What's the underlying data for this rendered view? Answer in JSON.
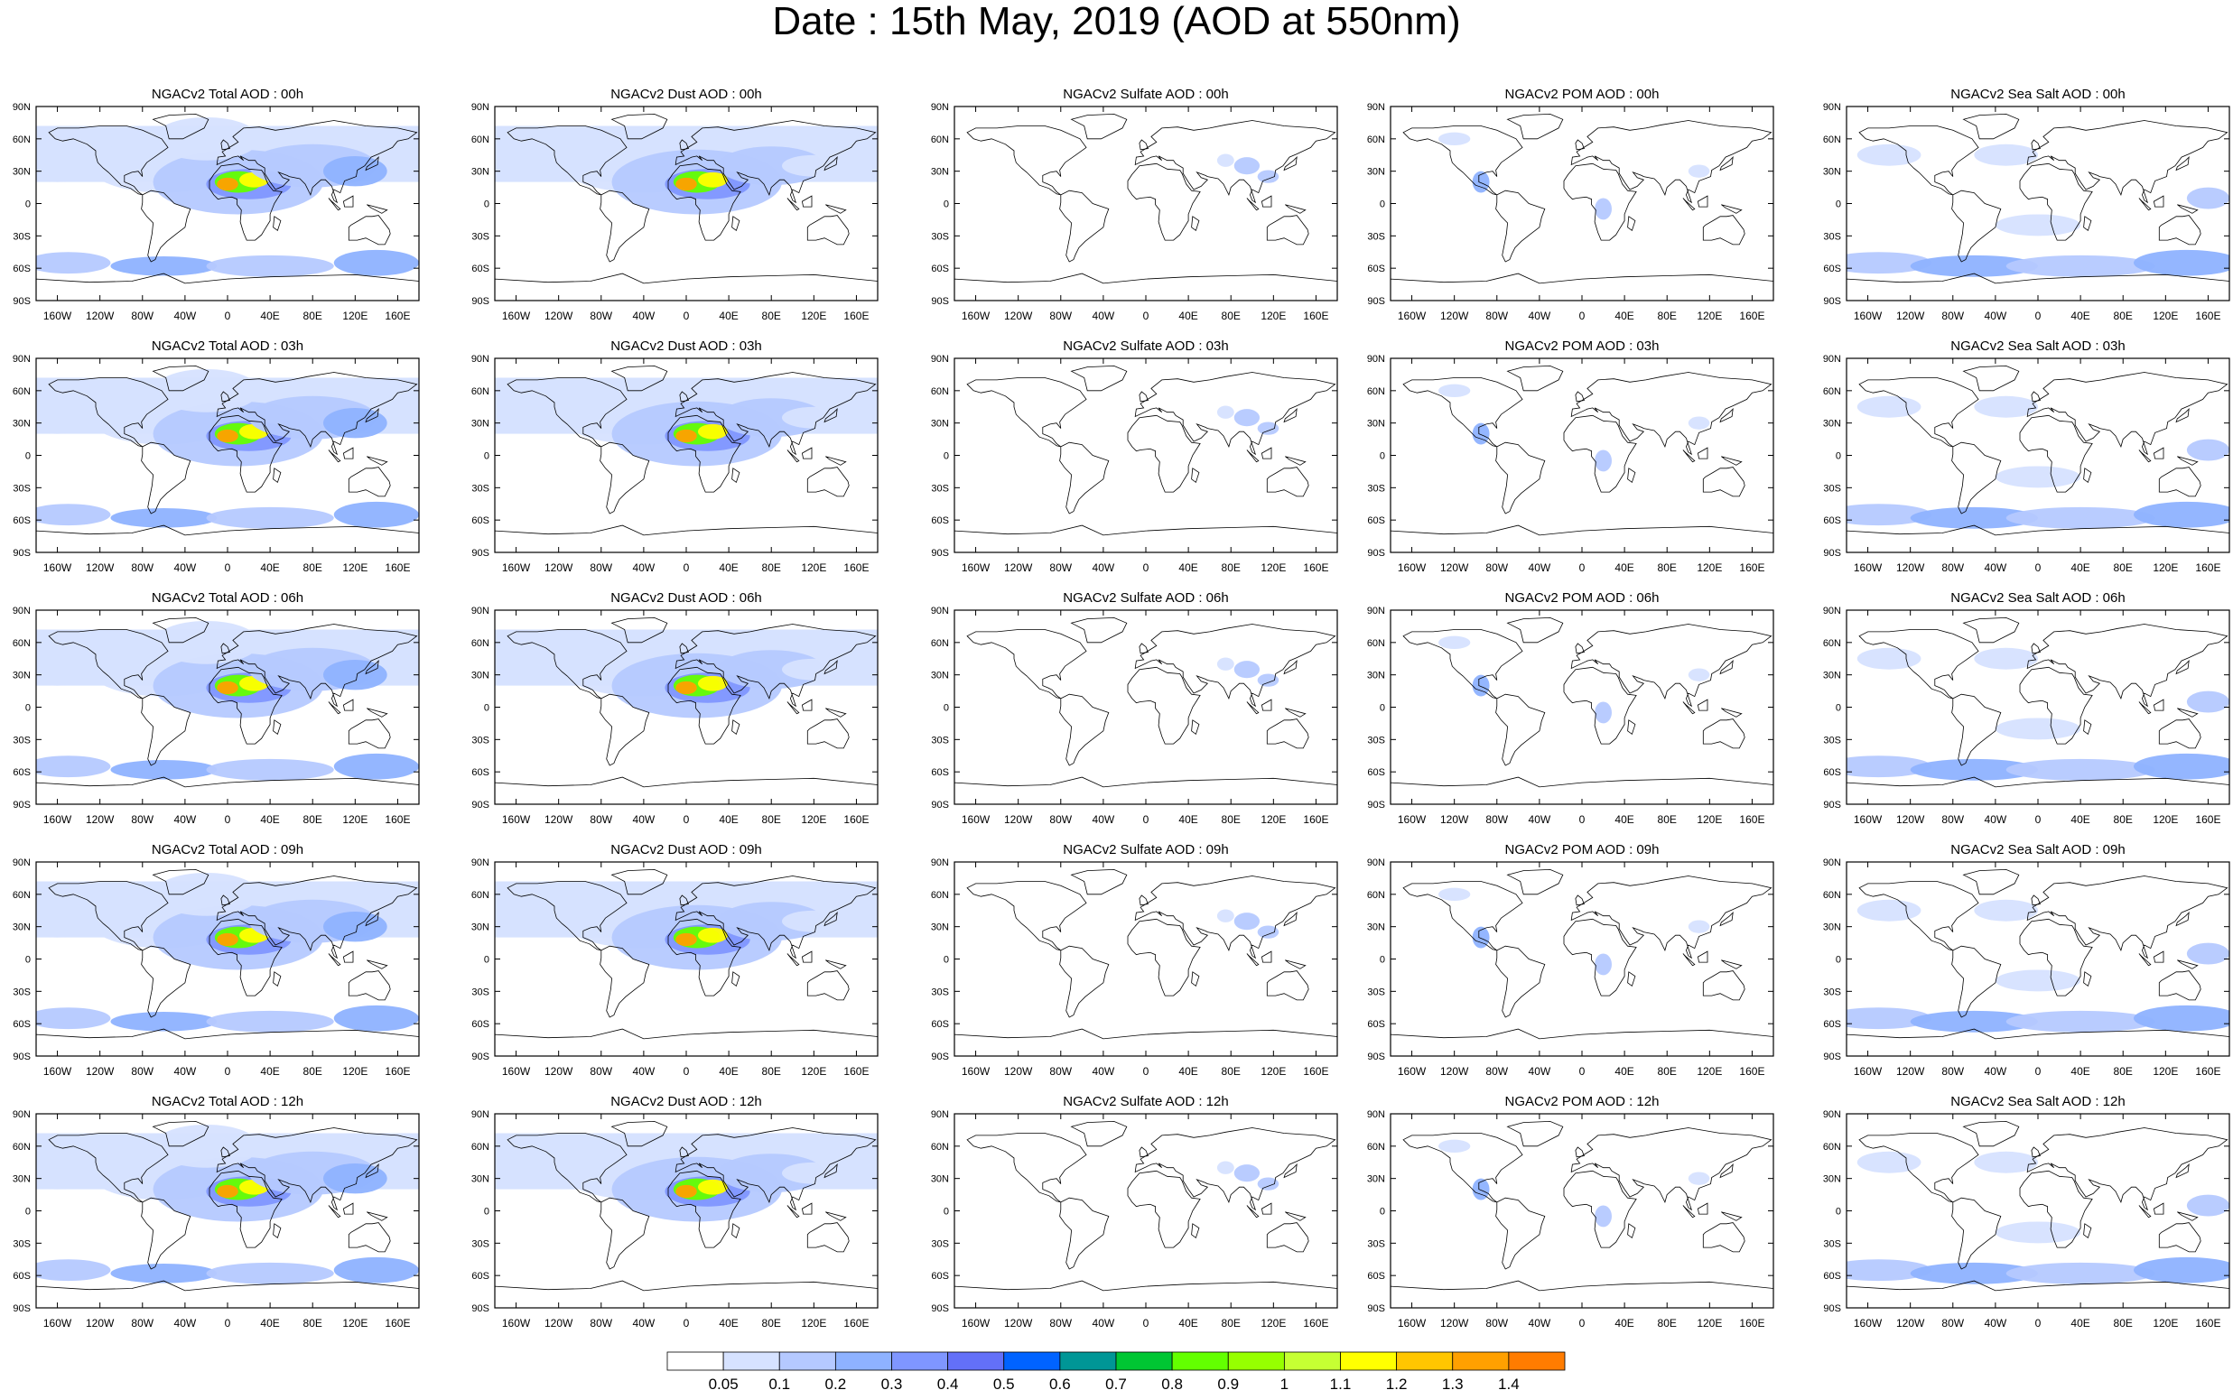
{
  "title": "Date : 15th May, 2019 (AOD at 550nm)",
  "panel_titles": [
    [
      "NGACv2 Total AOD : 00h",
      "NGACv2 Dust AOD : 00h",
      "NGACv2 Sulfate AOD : 00h",
      "NGACv2 POM AOD : 00h",
      "NGACv2 Sea Salt AOD : 00h"
    ],
    [
      "NGACv2 Total AOD : 03h",
      "NGACv2 Dust AOD : 03h",
      "NGACv2 Sulfate AOD : 03h",
      "NGACv2 POM AOD : 03h",
      "NGACv2 Sea Salt AOD : 03h"
    ],
    [
      "NGACv2 Total AOD : 06h",
      "NGACv2 Dust AOD : 06h",
      "NGACv2 Sulfate AOD : 06h",
      "NGACv2 POM AOD : 06h",
      "NGACv2 Sea Salt AOD : 06h"
    ],
    [
      "NGACv2 Total AOD : 09h",
      "NGACv2 Dust AOD : 09h",
      "NGACv2 Sulfate AOD : 09h",
      "NGACv2 POM AOD : 09h",
      "NGACv2 Sea Salt  AOD : 09h"
    ],
    [
      "NGACv2 Total AOD  : 12h",
      "NGACv2 Dust AOD : 12h",
      "NGACv2 Sulfate AOD : 12h",
      "NGACv2 POM  AOD : 12h",
      "NGACv2 Sea Salt  AOD : 12h"
    ]
  ],
  "lat_ticks": [
    "90N",
    "60N",
    "30N",
    "0",
    "30S",
    "60S",
    "90S"
  ],
  "lon_ticks": [
    "160W",
    "120W",
    "80W",
    "40W",
    "0",
    "40E",
    "80E",
    "120E",
    "160E"
  ],
  "colorbar": {
    "labels": [
      "0.05",
      "0.1",
      "0.2",
      "0.3",
      "0.4",
      "0.5",
      "0.6",
      "0.7",
      "0.8",
      "0.9",
      "1",
      "1.1",
      "1.2",
      "1.3",
      "1.4"
    ],
    "colors": [
      "#ffffff",
      "#d6e2ff",
      "#b5c9ff",
      "#8eb2ff",
      "#7f96ff",
      "#6370f8",
      "#0063ff",
      "#009696",
      "#00c633",
      "#63ff00",
      "#96ff00",
      "#c6ff33",
      "#ffff00",
      "#ffc600",
      "#ffa000",
      "#ff7c00",
      "#ff1900"
    ]
  },
  "field_types": [
    "total",
    "dust",
    "sulfate",
    "pom",
    "seasalt"
  ]
}
